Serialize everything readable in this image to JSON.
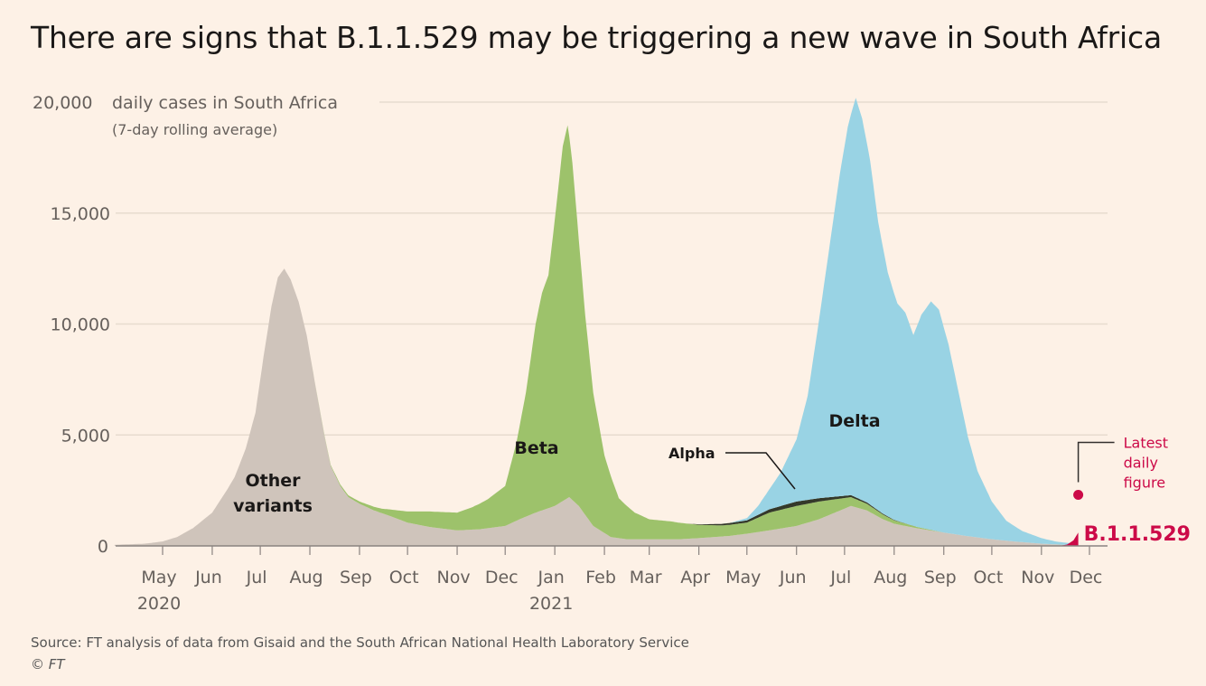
{
  "title": "There are signs that B.1.1.529 may be triggering a new wave in South Africa",
  "source": "Source: FT analysis of data from Gisaid and the South African National Health Laboratory Service",
  "copyright": "© FT",
  "colors": {
    "background": "#fdf1e6",
    "other": "#cfc4bb",
    "beta": "#9dc26b",
    "delta": "#99d3e4",
    "alpha_line": "#2e3324",
    "b529": "#cc0a48",
    "grid": "#e7dccf"
  },
  "chart_data": {
    "type": "area",
    "stacked": true,
    "ylabel": "daily cases in South Africa",
    "ylabel_note": "(7-day rolling average)",
    "ylim": [
      0,
      20000
    ],
    "yticks": [
      {
        "value": 0,
        "label": "0"
      },
      {
        "value": 5000,
        "label": "5,000"
      },
      {
        "value": 10000,
        "label": "10,000"
      },
      {
        "value": 15000,
        "label": "15,000"
      },
      {
        "value": 20000,
        "label": "20,000"
      }
    ],
    "x_domain": [
      "2020-04-01",
      "2021-12-10"
    ],
    "xticks": [
      {
        "date": "2020-05-01",
        "label": "May",
        "sublabel": "2020"
      },
      {
        "date": "2020-06-01",
        "label": "Jun"
      },
      {
        "date": "2020-07-01",
        "label": "Jul"
      },
      {
        "date": "2020-08-01",
        "label": "Aug"
      },
      {
        "date": "2020-09-01",
        "label": "Sep"
      },
      {
        "date": "2020-10-01",
        "label": "Oct"
      },
      {
        "date": "2020-11-01",
        "label": "Nov"
      },
      {
        "date": "2020-12-01",
        "label": "Dec"
      },
      {
        "date": "2021-01-01",
        "label": "Jan",
        "sublabel": "2021"
      },
      {
        "date": "2021-02-01",
        "label": "Feb"
      },
      {
        "date": "2021-03-01",
        "label": "Mar"
      },
      {
        "date": "2021-04-01",
        "label": "Apr"
      },
      {
        "date": "2021-05-01",
        "label": "May"
      },
      {
        "date": "2021-06-01",
        "label": "Jun"
      },
      {
        "date": "2021-07-01",
        "label": "Jul"
      },
      {
        "date": "2021-08-01",
        "label": "Aug"
      },
      {
        "date": "2021-09-01",
        "label": "Sep"
      },
      {
        "date": "2021-10-01",
        "label": "Oct"
      },
      {
        "date": "2021-11-01",
        "label": "Nov"
      },
      {
        "date": "2021-12-01",
        "label": "Dec"
      }
    ],
    "series": [
      {
        "name": "Other variants",
        "label_lines": [
          "Other",
          "variants"
        ],
        "color": "#cfc4bb",
        "points": [
          [
            "2020-04-01",
            50
          ],
          [
            "2020-04-20",
            100
          ],
          [
            "2020-05-01",
            200
          ],
          [
            "2020-05-10",
            400
          ],
          [
            "2020-05-20",
            800
          ],
          [
            "2020-06-01",
            1500
          ],
          [
            "2020-06-10",
            2500
          ],
          [
            "2020-06-15",
            3100
          ],
          [
            "2020-06-22",
            4400
          ],
          [
            "2020-06-28",
            6000
          ],
          [
            "2020-07-03",
            8500
          ],
          [
            "2020-07-08",
            10800
          ],
          [
            "2020-07-12",
            12100
          ],
          [
            "2020-07-16",
            12500
          ],
          [
            "2020-07-20",
            12000
          ],
          [
            "2020-07-25",
            11000
          ],
          [
            "2020-07-30",
            9500
          ],
          [
            "2020-08-05",
            7000
          ],
          [
            "2020-08-10",
            5000
          ],
          [
            "2020-08-14",
            3600
          ],
          [
            "2020-08-20",
            2700
          ],
          [
            "2020-08-25",
            2200
          ],
          [
            "2020-09-01",
            1900
          ],
          [
            "2020-09-10",
            1600
          ],
          [
            "2020-09-20",
            1350
          ],
          [
            "2020-10-01",
            1050
          ],
          [
            "2020-10-15",
            850
          ],
          [
            "2020-11-01",
            700
          ],
          [
            "2020-11-15",
            750
          ],
          [
            "2020-12-01",
            900
          ],
          [
            "2020-12-10",
            1200
          ],
          [
            "2020-12-20",
            1500
          ],
          [
            "2021-01-01",
            1800
          ],
          [
            "2021-01-10",
            2200
          ],
          [
            "2021-01-16",
            1800
          ],
          [
            "2021-01-25",
            900
          ],
          [
            "2021-02-05",
            400
          ],
          [
            "2021-02-15",
            300
          ],
          [
            "2021-03-01",
            300
          ],
          [
            "2021-03-20",
            300
          ],
          [
            "2021-04-01",
            350
          ],
          [
            "2021-04-20",
            450
          ],
          [
            "2021-05-01",
            550
          ],
          [
            "2021-05-15",
            700
          ],
          [
            "2021-06-01",
            900
          ],
          [
            "2021-06-15",
            1200
          ],
          [
            "2021-06-25",
            1500
          ],
          [
            "2021-07-05",
            1800
          ],
          [
            "2021-07-15",
            1600
          ],
          [
            "2021-07-25",
            1200
          ],
          [
            "2021-08-01",
            1000
          ],
          [
            "2021-08-15",
            800
          ],
          [
            "2021-09-01",
            600
          ],
          [
            "2021-09-15",
            450
          ],
          [
            "2021-10-01",
            300
          ],
          [
            "2021-10-15",
            200
          ],
          [
            "2021-11-01",
            100
          ],
          [
            "2021-11-15",
            50
          ],
          [
            "2021-11-24",
            20
          ]
        ]
      },
      {
        "name": "Beta",
        "label_lines": [
          "Beta"
        ],
        "color": "#9dc26b",
        "points": [
          [
            "2020-04-01",
            0
          ],
          [
            "2020-08-01",
            0
          ],
          [
            "2020-08-15",
            50
          ],
          [
            "2020-09-01",
            100
          ],
          [
            "2020-09-15",
            200
          ],
          [
            "2020-10-01",
            500
          ],
          [
            "2020-10-15",
            700
          ],
          [
            "2020-11-01",
            800
          ],
          [
            "2020-11-10",
            1000
          ],
          [
            "2020-11-20",
            1300
          ],
          [
            "2020-12-01",
            1800
          ],
          [
            "2020-12-08",
            3500
          ],
          [
            "2020-12-14",
            5600
          ],
          [
            "2020-12-20",
            8500
          ],
          [
            "2020-12-24",
            9800
          ],
          [
            "2020-12-28",
            10500
          ],
          [
            "2021-01-02",
            13500
          ],
          [
            "2021-01-06",
            16000
          ],
          [
            "2021-01-09",
            16800
          ],
          [
            "2021-01-12",
            15200
          ],
          [
            "2021-01-16",
            12000
          ],
          [
            "2021-01-20",
            9000
          ],
          [
            "2021-01-25",
            6000
          ],
          [
            "2021-02-01",
            3500
          ],
          [
            "2021-02-10",
            1800
          ],
          [
            "2021-02-20",
            1200
          ],
          [
            "2021-03-01",
            900
          ],
          [
            "2021-03-15",
            800
          ],
          [
            "2021-04-01",
            600
          ],
          [
            "2021-04-15",
            500
          ],
          [
            "2021-05-01",
            500
          ],
          [
            "2021-05-15",
            800
          ],
          [
            "2021-06-01",
            900
          ],
          [
            "2021-06-15",
            800
          ],
          [
            "2021-06-25",
            600
          ],
          [
            "2021-07-05",
            400
          ],
          [
            "2021-07-15",
            300
          ],
          [
            "2021-08-01",
            150
          ],
          [
            "2021-08-15",
            60
          ],
          [
            "2021-09-01",
            0
          ],
          [
            "2021-11-24",
            0
          ]
        ]
      },
      {
        "name": "Alpha",
        "label_lines": [
          "Alpha"
        ],
        "color": "#2e3324",
        "points": [
          [
            "2020-04-01",
            0
          ],
          [
            "2021-03-25",
            0
          ],
          [
            "2021-04-10",
            50
          ],
          [
            "2021-04-20",
            80
          ],
          [
            "2021-05-01",
            100
          ],
          [
            "2021-05-15",
            150
          ],
          [
            "2021-06-01",
            200
          ],
          [
            "2021-06-15",
            150
          ],
          [
            "2021-07-01",
            100
          ],
          [
            "2021-07-15",
            60
          ],
          [
            "2021-08-01",
            20
          ],
          [
            "2021-08-15",
            0
          ],
          [
            "2021-11-24",
            0
          ]
        ]
      },
      {
        "name": "Delta",
        "label_lines": [
          "Delta"
        ],
        "color": "#99d3e4",
        "points": [
          [
            "2020-04-01",
            0
          ],
          [
            "2021-04-20",
            0
          ],
          [
            "2021-05-01",
            100
          ],
          [
            "2021-05-08",
            400
          ],
          [
            "2021-05-15",
            900
          ],
          [
            "2021-05-22",
            1500
          ],
          [
            "2021-06-01",
            2800
          ],
          [
            "2021-06-08",
            4700
          ],
          [
            "2021-06-15",
            8000
          ],
          [
            "2021-06-22",
            11500
          ],
          [
            "2021-06-28",
            14500
          ],
          [
            "2021-07-03",
            16600
          ],
          [
            "2021-07-08",
            18000
          ],
          [
            "2021-07-12",
            17200
          ],
          [
            "2021-07-17",
            15500
          ],
          [
            "2021-07-22",
            13000
          ],
          [
            "2021-07-28",
            11000
          ],
          [
            "2021-08-03",
            9800
          ],
          [
            "2021-08-08",
            9500
          ],
          [
            "2021-08-13",
            8600
          ],
          [
            "2021-08-18",
            9600
          ],
          [
            "2021-08-24",
            10300
          ],
          [
            "2021-08-29",
            10000
          ],
          [
            "2021-09-04",
            8500
          ],
          [
            "2021-09-10",
            6500
          ],
          [
            "2021-09-16",
            4500
          ],
          [
            "2021-09-22",
            3000
          ],
          [
            "2021-10-01",
            1700
          ],
          [
            "2021-10-10",
            900
          ],
          [
            "2021-10-20",
            500
          ],
          [
            "2021-11-01",
            250
          ],
          [
            "2021-11-10",
            130
          ],
          [
            "2021-11-20",
            80
          ],
          [
            "2021-11-24",
            60
          ]
        ]
      },
      {
        "name": "B.1.1.529",
        "label_lines": [
          "B.1.1.529"
        ],
        "color": "#cc0a48",
        "points": [
          [
            "2021-11-12",
            0
          ],
          [
            "2021-11-17",
            60
          ],
          [
            "2021-11-21",
            250
          ],
          [
            "2021-11-24",
            600
          ]
        ]
      }
    ],
    "latest_point": {
      "date": "2021-11-24",
      "value": 2300,
      "label_lines": [
        "Latest",
        "daily",
        "figure"
      ]
    },
    "grid": true,
    "legend": "inline labels"
  }
}
